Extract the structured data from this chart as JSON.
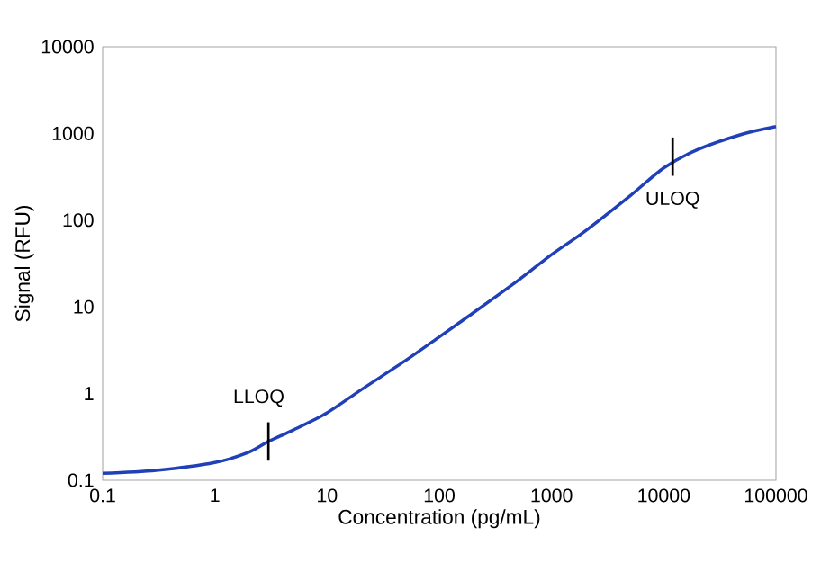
{
  "chart_data": {
    "type": "line",
    "xlabel": "Concentration (pg/mL)",
    "ylabel": "Signal (RFU)",
    "log": "xy",
    "grid": false,
    "xlim": [
      0.1,
      100000
    ],
    "ylim": [
      0.1,
      10000
    ],
    "xticks": [
      0.1,
      1,
      10,
      100,
      1000,
      10000,
      100000
    ],
    "yticks": [
      0.1,
      1,
      10,
      100,
      1000,
      10000
    ],
    "x": [
      0.1,
      0.3,
      1,
      2,
      3,
      5,
      10,
      20,
      50,
      100,
      200,
      500,
      1000,
      2000,
      5000,
      10000,
      20000,
      50000,
      100000
    ],
    "series": [
      {
        "color": "#1f40b8",
        "values": [
          0.12,
          0.13,
          0.16,
          0.21,
          0.28,
          0.38,
          0.6,
          1.1,
          2.4,
          4.5,
          8.5,
          20,
          40,
          75,
          190,
          400,
          650,
          980,
          1200
        ]
      }
    ],
    "annotations": [
      {
        "text": "LLOQ",
        "x": 3,
        "y": 0.28
      },
      {
        "text": "ULOQ",
        "x": 12000,
        "y": 540
      }
    ]
  }
}
